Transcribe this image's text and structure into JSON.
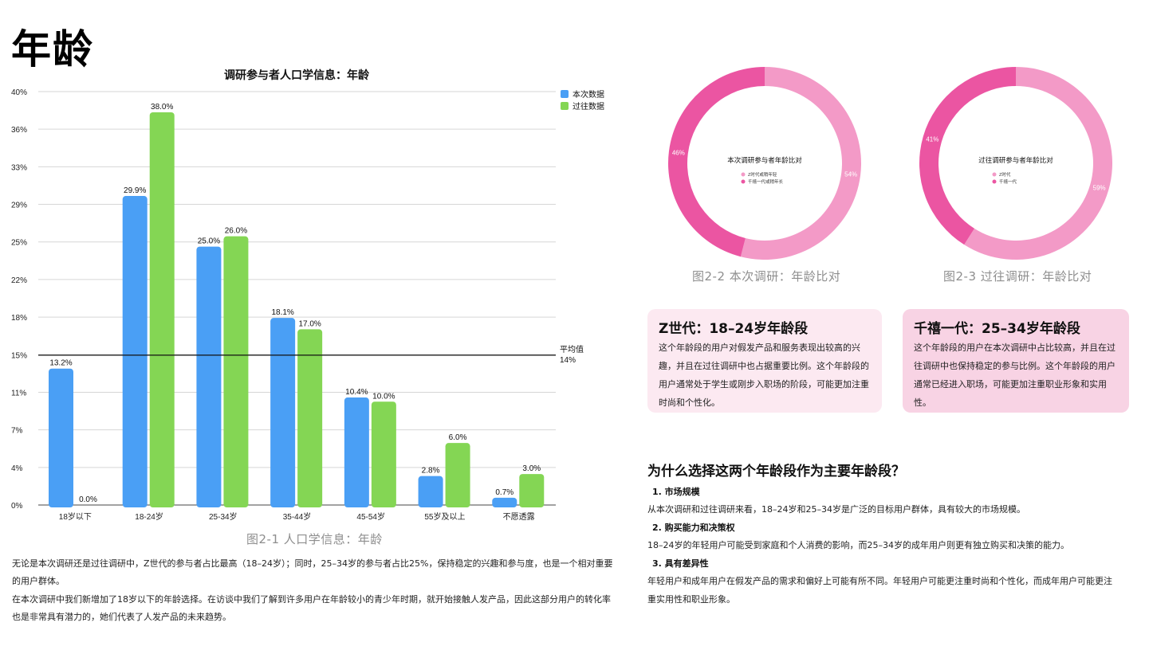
{
  "page": {
    "title": "年龄",
    "fig1_caption": "图2-1 人口学信息：年龄",
    "fig2_caption": "图2-2 本次调研：年龄比对",
    "fig3_caption": "图2-3 过往调研：年龄比对"
  },
  "chart_data": [
    {
      "type": "bar",
      "title": "调研参与者人口学信息：年龄",
      "categories": [
        "18岁以下",
        "18-24岁",
        "25-34岁",
        "35-44岁",
        "45-54岁",
        "55岁及以上",
        "不愿透露"
      ],
      "series": [
        {
          "name": "本次数据",
          "color": "#4a9ff5",
          "values": [
            13.2,
            29.9,
            25.0,
            18.1,
            10.4,
            2.8,
            0.7
          ],
          "labels": [
            "13.2%",
            "29.9%",
            "25.0%",
            "18.1%",
            "10.4%",
            "2.8%",
            "0.7%"
          ]
        },
        {
          "name": "过往数据",
          "color": "#84d654",
          "values": [
            0.0,
            38.0,
            26.0,
            17.0,
            10.0,
            6.0,
            3.0
          ],
          "labels": [
            "0.0%",
            "38.0%",
            "26.0%",
            "17.0%",
            "10.0%",
            "6.0%",
            "3.0%"
          ]
        }
      ],
      "ylim": [
        0,
        40
      ],
      "yticks": [
        "0%",
        "4%",
        "7%",
        "11%",
        "15%",
        "18%",
        "22%",
        "25%",
        "29%",
        "33%",
        "36%",
        "40%"
      ],
      "average": {
        "value": 14.5,
        "label": "平均值",
        "value_label": "14%"
      },
      "legend": "top-right",
      "grid": true
    },
    {
      "type": "pie",
      "title": "本次调研参与者年龄比对",
      "slices": [
        {
          "name": "Z时代或稍年轻",
          "value": 54,
          "label": "54%",
          "color": "#f39ac7"
        },
        {
          "name": "千禧一代或稍年长",
          "value": 46,
          "label": "46%",
          "color": "#eb55a2"
        }
      ]
    },
    {
      "type": "pie",
      "title": "过往调研参与者年龄比对",
      "slices": [
        {
          "name": "Z时代",
          "value": 59,
          "label": "59%",
          "color": "#f39ac7"
        },
        {
          "name": "千禧一代",
          "value": 41,
          "label": "41%",
          "color": "#eb55a2"
        }
      ]
    }
  ],
  "left_text": {
    "p1": "无论是本次调研还是过往调研中，Z世代的参与者占比最高（18–24岁）；同时，25–34岁的参与者占比25%，保持稳定的兴趣和参与度，也是一个相对重要的用户群体。",
    "p2": "在本次调研中我们新增加了18岁以下的年龄选择。在访谈中我们了解到许多用户在年龄较小的青少年时期，就开始接触人发产品，因此这部分用户的转化率也是非常具有潜力的，她们代表了人发产品的未来趋势。"
  },
  "cards": {
    "z": {
      "title": "Z世代：18–24岁年龄段",
      "text": "这个年龄段的用户对假发产品和服务表现出较高的兴趣，并且在过往调研中也占据重要比例。这个年龄段的用户通常处于学生或刚步入职场的阶段，可能更加注重时尚和个性化。"
    },
    "m": {
      "title": "千禧一代：25–34岁年龄段",
      "text": "这个年龄段的用户在本次调研中占比较高，并且在过往调研中也保持稳定的参与比例。这个年龄段的用户通常已经进入职场，可能更加注重职业形象和实用性。"
    }
  },
  "why": {
    "title": "为什么选择这两个年龄段作为主要年龄段？",
    "items": [
      {
        "heading": "1. 市场规模",
        "text": "从本次调研和过往调研来看，18–24岁和25–34岁是广泛的目标用户群体，具有较大的市场规模。"
      },
      {
        "heading": "2. 购买能力和决策权",
        "text": "18–24岁的年轻用户可能受到家庭和个人消费的影响，而25–34岁的成年用户则更有独立购买和决策的能力。"
      },
      {
        "heading": "3. 具有差异性",
        "text": "年轻用户和成年用户在假发产品的需求和偏好上可能有所不同。年轻用户可能更注重时尚和个性化，而成年用户可能更注重实用性和职业形象。"
      }
    ]
  }
}
